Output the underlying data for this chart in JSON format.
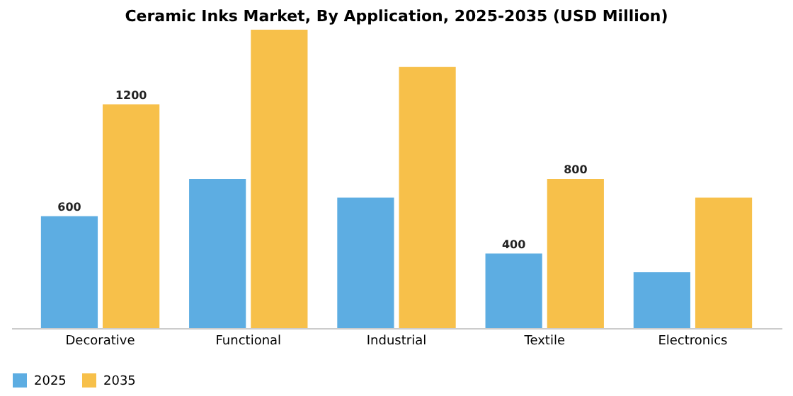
{
  "chart_data": {
    "type": "bar",
    "title": "Ceramic Inks Market, By Application, 2025-2035 (USD Million)",
    "categories": [
      "Decorative",
      "Functional",
      "Industrial",
      "Textile",
      "Electronics"
    ],
    "series": [
      {
        "name": "2025",
        "color": "#5dade2",
        "values": [
          600,
          800,
          700,
          400,
          300
        ],
        "value_labels": [
          "600",
          null,
          null,
          "400",
          null
        ]
      },
      {
        "name": "2035",
        "color": "#f7c04a",
        "values": [
          1200,
          1600,
          1400,
          800,
          700
        ],
        "value_labels": [
          "1200",
          null,
          null,
          "800",
          null
        ]
      }
    ],
    "tick_labels": "x",
    "grid": false,
    "legend": "bottom"
  }
}
